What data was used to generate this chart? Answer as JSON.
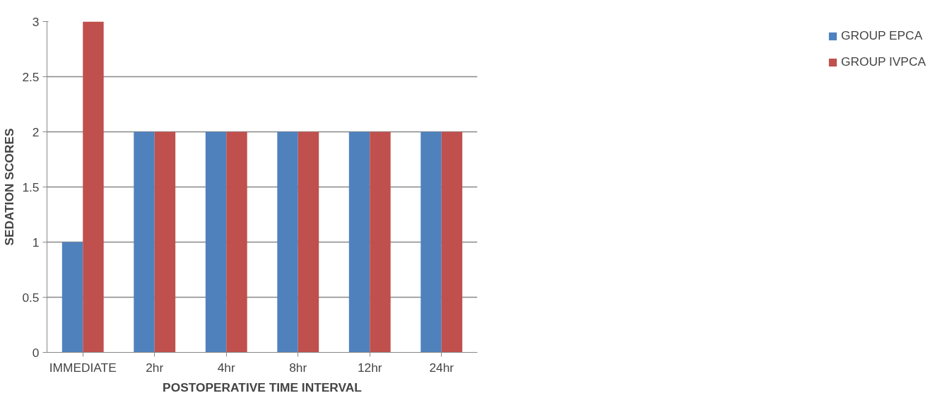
{
  "chart_data": {
    "type": "bar",
    "xlabel": "POSTOPERATIVE TIME INTERVAL",
    "ylabel": "SEDATION SCORES",
    "categories": [
      "IMMEDIATE",
      "2hr",
      "4hr",
      "8hr",
      "12hr",
      "24hr"
    ],
    "series": [
      {
        "name": "GROUP EPCA",
        "color": "#4f81bd",
        "values": [
          1,
          2,
          2,
          2,
          2,
          2
        ]
      },
      {
        "name": "GROUP IVPCA",
        "color": "#c0504d",
        "values": [
          3,
          2,
          2,
          2,
          2,
          2
        ]
      }
    ],
    "ylim": [
      0,
      3
    ],
    "yticks": [
      0,
      0.5,
      1,
      1.5,
      2,
      2.5,
      3
    ],
    "grid": "y",
    "legend": "right"
  }
}
